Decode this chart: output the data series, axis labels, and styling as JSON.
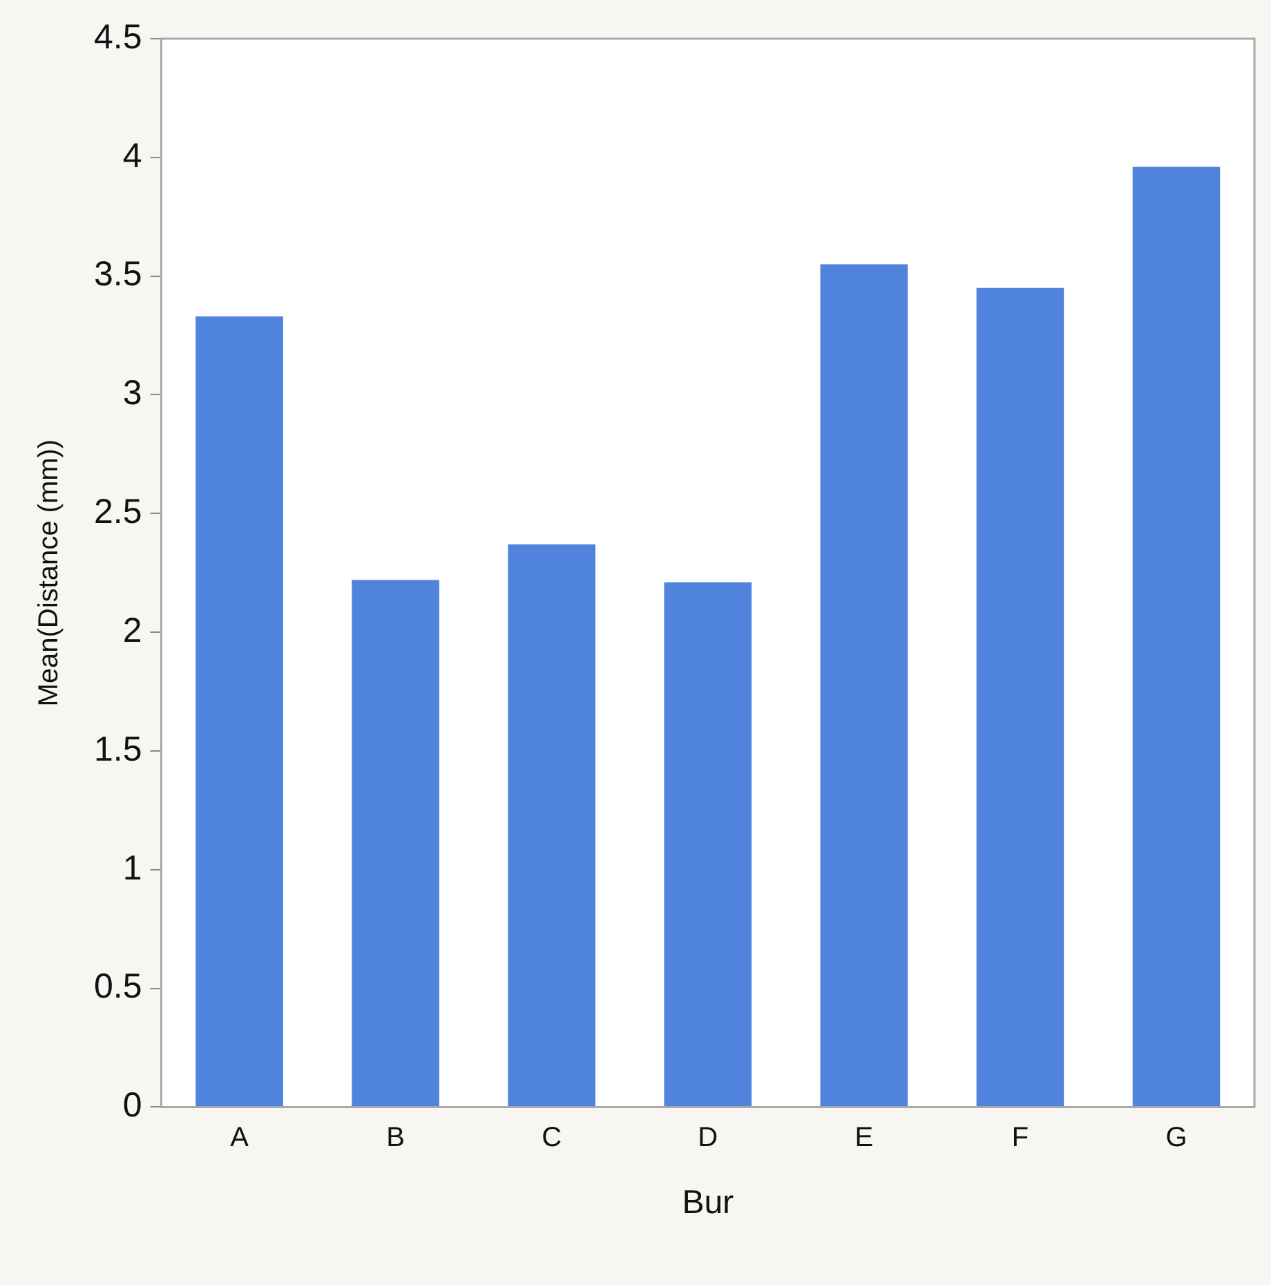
{
  "chart_data": {
    "type": "bar",
    "xlabel": "Bur",
    "ylabel": "Mean(Distance (mm))",
    "categories": [
      "A",
      "B",
      "C",
      "D",
      "E",
      "F",
      "G"
    ],
    "values": [
      3.33,
      2.22,
      2.37,
      2.21,
      3.55,
      3.45,
      3.96
    ],
    "color": "#5083dc",
    "ylim": [
      0,
      4.5
    ],
    "yticks": [
      0,
      0.5,
      1,
      1.5,
      2,
      2.5,
      3,
      3.5,
      4,
      4.5
    ],
    "grid": false,
    "legend": false
  }
}
